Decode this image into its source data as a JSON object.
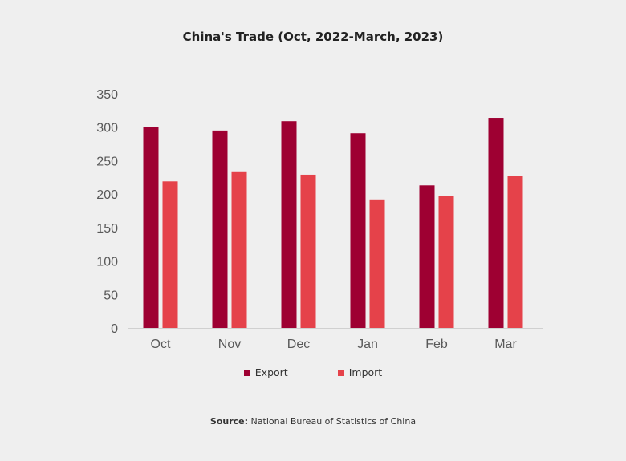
{
  "chart_data": {
    "type": "bar",
    "title": "China's Trade (Oct, 2022-March, 2023)",
    "categories": [
      "Oct",
      "Nov",
      "Dec",
      "Jan",
      "Feb",
      "Mar"
    ],
    "series": [
      {
        "name": "Export",
        "color": "#9e0032",
        "values": [
          300,
          295,
          309,
          291,
          213,
          314
        ]
      },
      {
        "name": "Import",
        "color": "#e5424a",
        "values": [
          219,
          234,
          229,
          192,
          197,
          227
        ]
      }
    ],
    "yticks": [
      0,
      50,
      100,
      150,
      200,
      250,
      300,
      350
    ],
    "ylim": [
      0,
      350
    ],
    "xlabel": "",
    "ylabel": "",
    "grid": false,
    "legend_position": "bottom"
  },
  "source": {
    "label": "Source:",
    "text": "National Bureau of Statistics of China"
  }
}
